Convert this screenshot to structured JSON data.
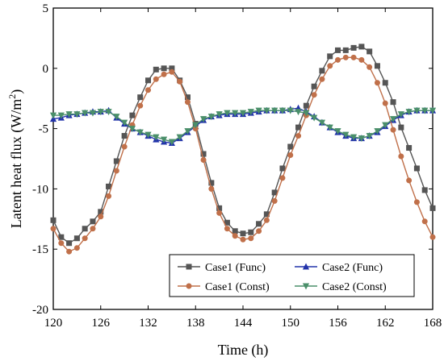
{
  "chart_data": {
    "type": "line",
    "title": "",
    "xlabel": "Time (h)",
    "ylabel": "Latent heat flux (W/m²)",
    "ylabel_main": "Latent heat flux (W/m",
    "ylabel_sup": "2",
    "ylabel_close": ")",
    "xlim": [
      120,
      168
    ],
    "ylim": [
      -20,
      5
    ],
    "xticks": [
      "120",
      "126",
      "132",
      "138",
      "144",
      "150",
      "156",
      "162",
      "168"
    ],
    "yticks": [
      "5",
      "0",
      "-5",
      "-10",
      "-15",
      "-20"
    ],
    "grid": false,
    "legend_position": "bottom-right",
    "x": [
      120,
      121,
      122,
      123,
      124,
      125,
      126,
      127,
      128,
      129,
      130,
      131,
      132,
      133,
      134,
      135,
      136,
      137,
      138,
      139,
      140,
      141,
      142,
      143,
      144,
      145,
      146,
      147,
      148,
      149,
      150,
      151,
      152,
      153,
      154,
      155,
      156,
      157,
      158,
      159,
      160,
      161,
      162,
      163,
      164,
      165,
      166,
      167,
      168
    ],
    "series": [
      {
        "name": "Case1 (Func)",
        "color": "#555555",
        "marker": "square",
        "values": [
          -12.6,
          -14.0,
          -14.5,
          -14.1,
          -13.3,
          -12.7,
          -11.9,
          -9.8,
          -7.7,
          -5.6,
          -3.9,
          -2.4,
          -1.0,
          -0.1,
          0.0,
          0.0,
          -1.0,
          -2.4,
          -4.6,
          -7.1,
          -9.5,
          -11.6,
          -12.8,
          -13.5,
          -13.7,
          -13.6,
          -12.9,
          -12.1,
          -10.3,
          -8.3,
          -6.5,
          -4.9,
          -3.1,
          -1.5,
          -0.2,
          1.0,
          1.5,
          1.5,
          1.7,
          1.8,
          1.4,
          0.2,
          -1.2,
          -2.8,
          -4.9,
          -6.6,
          -8.3,
          -10.1,
          -11.6
        ]
      },
      {
        "name": "Case2 (Func)",
        "color": "#2233aa",
        "marker": "triangle-up",
        "values": [
          -4.2,
          -4.1,
          -3.9,
          -3.8,
          -3.7,
          -3.6,
          -3.6,
          -3.5,
          -4.1,
          -4.6,
          -5.0,
          -5.3,
          -5.6,
          -5.9,
          -6.1,
          -6.2,
          -5.8,
          -5.3,
          -4.8,
          -4.3,
          -4.0,
          -3.9,
          -3.8,
          -3.8,
          -3.8,
          -3.7,
          -3.6,
          -3.5,
          -3.5,
          -3.5,
          -3.4,
          -3.3,
          -3.6,
          -4.0,
          -4.5,
          -4.9,
          -5.3,
          -5.6,
          -5.8,
          -5.8,
          -5.6,
          -5.3,
          -4.8,
          -4.3,
          -3.9,
          -3.6,
          -3.5,
          -3.5,
          -3.5
        ]
      },
      {
        "name": "Case1 (Const)",
        "color": "#c0704a",
        "marker": "circle",
        "values": [
          -13.3,
          -14.5,
          -15.2,
          -14.9,
          -14.1,
          -13.3,
          -12.3,
          -10.6,
          -8.5,
          -6.5,
          -4.7,
          -3.1,
          -1.8,
          -0.9,
          -0.5,
          -0.3,
          -1.1,
          -2.8,
          -5.0,
          -7.6,
          -10.0,
          -12.0,
          -13.3,
          -13.9,
          -14.2,
          -14.1,
          -13.5,
          -12.6,
          -11.0,
          -9.1,
          -7.2,
          -5.6,
          -3.9,
          -2.2,
          -0.9,
          0.2,
          0.7,
          0.9,
          0.9,
          0.7,
          0.1,
          -1.2,
          -2.9,
          -5.1,
          -7.3,
          -9.3,
          -11.1,
          -12.7,
          -14.0
        ]
      },
      {
        "name": "Case2 (Const)",
        "color": "#4a8f6a",
        "marker": "triangle-down",
        "values": [
          -3.9,
          -3.9,
          -3.8,
          -3.8,
          -3.7,
          -3.7,
          -3.6,
          -3.6,
          -4.0,
          -4.5,
          -5.0,
          -5.3,
          -5.5,
          -5.7,
          -5.9,
          -6.1,
          -5.7,
          -5.2,
          -4.7,
          -4.2,
          -4.0,
          -3.8,
          -3.7,
          -3.7,
          -3.7,
          -3.6,
          -3.5,
          -3.5,
          -3.5,
          -3.5,
          -3.5,
          -3.6,
          -3.7,
          -4.1,
          -4.5,
          -4.9,
          -5.2,
          -5.5,
          -5.7,
          -5.8,
          -5.6,
          -5.2,
          -4.7,
          -4.2,
          -3.8,
          -3.6,
          -3.5,
          -3.5,
          -3.5
        ]
      }
    ]
  }
}
